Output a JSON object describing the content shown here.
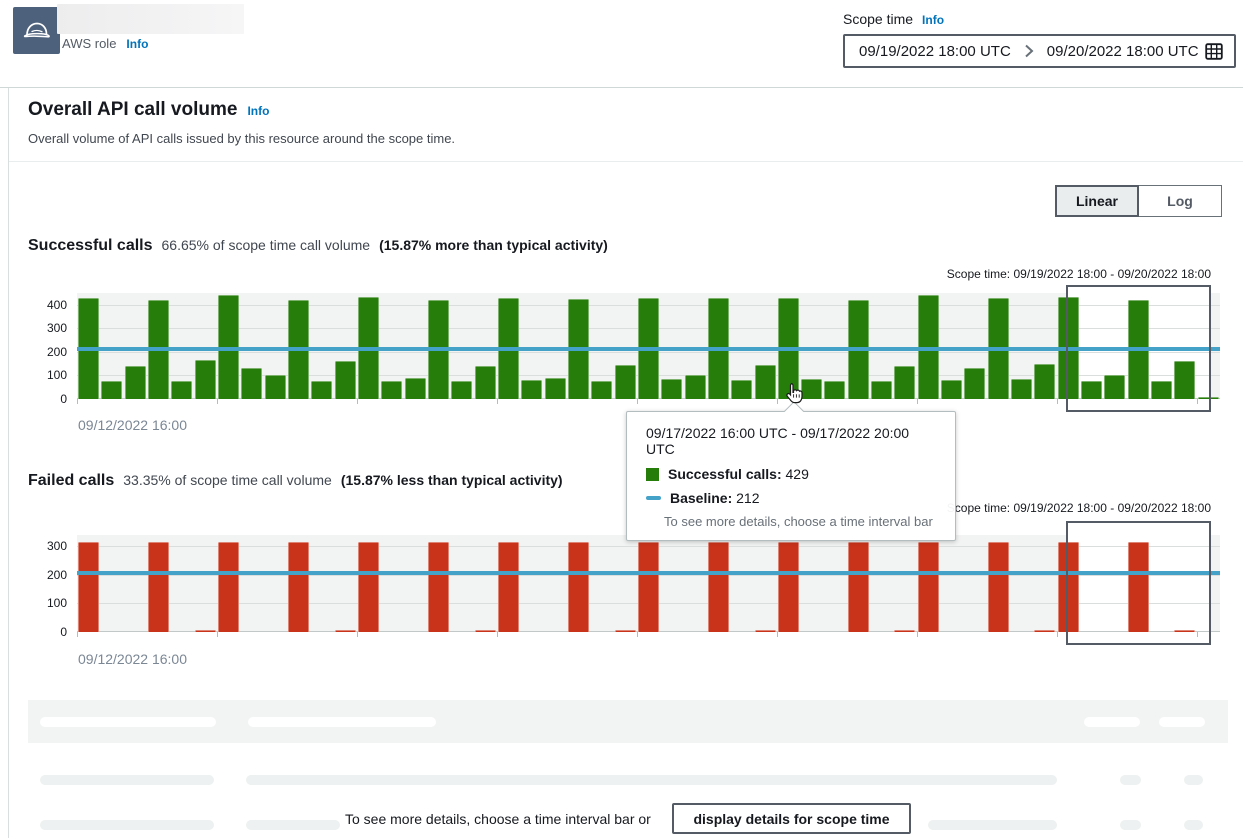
{
  "header": {
    "role_label": "AWS role",
    "role_info": "Info"
  },
  "scope_time": {
    "label": "Scope time",
    "info": "Info",
    "start": "09/19/2022 18:00 UTC",
    "end": "09/20/2022 18:00 UTC"
  },
  "panel": {
    "title": "Overall API call volume",
    "info": "Info",
    "description": "Overall volume of API calls issued by this resource around the scope time.",
    "toggle": {
      "linear": "Linear",
      "log": "Log",
      "selected": "Linear"
    }
  },
  "successful": {
    "heading": "Successful calls",
    "stat": "66.65% of scope time call volume",
    "stat_emphasis": "(15.87% more than typical activity)",
    "scope_label": "Scope time: 09/19/2022 18:00 - 09/20/2022 18:00",
    "x_axis_label": "09/12/2022 16:00"
  },
  "failed": {
    "heading": "Failed calls",
    "stat": "33.35% of scope time call volume",
    "stat_emphasis": "(15.87% less than typical activity)",
    "scope_label": "Scope time: 09/19/2022 18:00 - 09/20/2022 18:00",
    "x_axis_label": "09/12/2022 16:00"
  },
  "tooltip": {
    "title": "09/17/2022 16:00 UTC - 09/17/2022 20:00 UTC",
    "series_label": "Successful calls:",
    "series_value": "429",
    "baseline_label": "Baseline:",
    "baseline_value": "212",
    "hint": "To see more details, choose a time interval bar"
  },
  "footer": {
    "prompt": "To see more details, choose a time interval bar or",
    "button_label": "display details for scope time"
  },
  "chart_data": [
    {
      "type": "bar",
      "title": "Successful calls",
      "x_start_label": "09/12/2022 16:00",
      "scope_time_label": "Scope time: 09/19/2022 18:00 - 09/20/2022 18:00",
      "ylim": [
        0,
        450
      ],
      "yticks": [
        0,
        100,
        200,
        300,
        400
      ],
      "baseline": 212,
      "bar_color": "#267d0a",
      "baseline_color": "#44a2c8",
      "grid": true,
      "legend_position": "none",
      "values": [
        430,
        75,
        140,
        420,
        75,
        165,
        440,
        130,
        100,
        420,
        75,
        160,
        435,
        75,
        90,
        420,
        75,
        140,
        430,
        80,
        90,
        425,
        75,
        145,
        430,
        85,
        100,
        430,
        80,
        145,
        429,
        85,
        75,
        420,
        75,
        140,
        440,
        80,
        130,
        430,
        85,
        150,
        435,
        75,
        100,
        420,
        75,
        160,
        10
      ]
    },
    {
      "type": "bar",
      "title": "Failed calls",
      "x_start_label": "09/12/2022 16:00",
      "scope_time_label": "Scope time: 09/19/2022 18:00 - 09/20/2022 18:00",
      "ylim": [
        0,
        340
      ],
      "yticks": [
        0,
        100,
        200,
        300
      ],
      "baseline": 207,
      "bar_color": "#c9331a",
      "baseline_color": "#44a2c8",
      "grid": true,
      "legend_position": "none",
      "values": [
        315,
        0,
        0,
        315,
        0,
        5,
        315,
        0,
        0,
        315,
        0,
        5,
        315,
        0,
        0,
        315,
        0,
        5,
        315,
        0,
        0,
        315,
        0,
        5,
        315,
        0,
        0,
        315,
        0,
        5,
        315,
        0,
        0,
        315,
        0,
        5,
        315,
        0,
        0,
        315,
        0,
        5,
        315,
        0,
        0,
        315,
        0,
        5,
        0
      ]
    }
  ]
}
